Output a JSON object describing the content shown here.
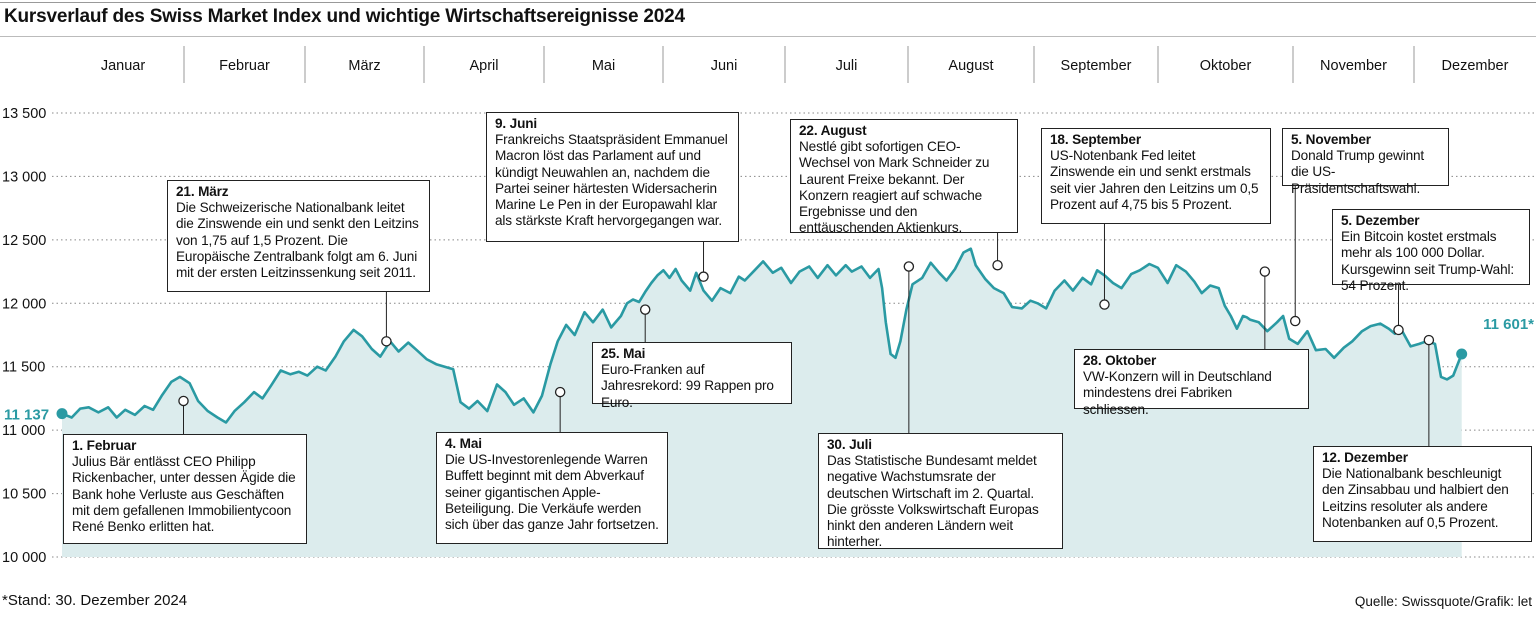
{
  "title": "Kursverlauf des Swiss Market Index und wichtige Wirtschaftsereignisse 2024",
  "footnote": "*Stand: 30. Dezember 2024",
  "source": "Quelle: Swissquote/Grafik: let",
  "colors": {
    "line": "#2a9aa3",
    "area": "#dceced",
    "grid": "#888888"
  },
  "chart_data": {
    "type": "area",
    "title": "Kursverlauf des Swiss Market Index und wichtige Wirtschaftsereignisse 2024",
    "xlabel": "",
    "ylabel": "",
    "months": [
      "Januar",
      "Februar",
      "März",
      "April",
      "Mai",
      "Juni",
      "Juli",
      "August",
      "September",
      "Oktober",
      "November",
      "Dezember"
    ],
    "ylim": [
      10000,
      13500
    ],
    "yticks": [
      10000,
      10500,
      11000,
      11500,
      12000,
      12500,
      13000,
      13500
    ],
    "ytick_labels": [
      "10 000",
      "10 500",
      "11 000",
      "11 500",
      "12 000",
      "12 500",
      "13 000",
      "13 500"
    ],
    "start_label": "11 137",
    "end_label": "11 601*",
    "series": [
      {
        "name": "SMI",
        "points": [
          [
            0.0,
            11130
          ],
          [
            0.08,
            11100
          ],
          [
            0.15,
            11170
          ],
          [
            0.22,
            11180
          ],
          [
            0.3,
            11140
          ],
          [
            0.38,
            11180
          ],
          [
            0.45,
            11100
          ],
          [
            0.52,
            11160
          ],
          [
            0.6,
            11120
          ],
          [
            0.68,
            11190
          ],
          [
            0.75,
            11160
          ],
          [
            0.82,
            11270
          ],
          [
            0.9,
            11380
          ],
          [
            0.97,
            11420
          ],
          [
            1.05,
            11370
          ],
          [
            1.12,
            11230
          ],
          [
            1.2,
            11150
          ],
          [
            1.28,
            11100
          ],
          [
            1.35,
            11060
          ],
          [
            1.42,
            11150
          ],
          [
            1.5,
            11220
          ],
          [
            1.58,
            11300
          ],
          [
            1.65,
            11250
          ],
          [
            1.72,
            11350
          ],
          [
            1.8,
            11470
          ],
          [
            1.88,
            11440
          ],
          [
            1.95,
            11460
          ],
          [
            2.02,
            11430
          ],
          [
            2.1,
            11500
          ],
          [
            2.17,
            11470
          ],
          [
            2.25,
            11580
          ],
          [
            2.32,
            11700
          ],
          [
            2.4,
            11790
          ],
          [
            2.47,
            11740
          ],
          [
            2.55,
            11640
          ],
          [
            2.62,
            11580
          ],
          [
            2.7,
            11700
          ],
          [
            2.77,
            11620
          ],
          [
            2.85,
            11690
          ],
          [
            2.92,
            11630
          ],
          [
            3.0,
            11560
          ],
          [
            3.08,
            11520
          ],
          [
            3.15,
            11500
          ],
          [
            3.22,
            11480
          ],
          [
            3.28,
            11220
          ],
          [
            3.35,
            11170
          ],
          [
            3.42,
            11230
          ],
          [
            3.5,
            11150
          ],
          [
            3.58,
            11360
          ],
          [
            3.65,
            11300
          ],
          [
            3.72,
            11200
          ],
          [
            3.8,
            11250
          ],
          [
            3.88,
            11140
          ],
          [
            3.95,
            11270
          ],
          [
            4.02,
            11520
          ],
          [
            4.08,
            11700
          ],
          [
            4.15,
            11830
          ],
          [
            4.22,
            11750
          ],
          [
            4.3,
            11930
          ],
          [
            4.37,
            11850
          ],
          [
            4.45,
            11950
          ],
          [
            4.52,
            11810
          ],
          [
            4.6,
            11900
          ],
          [
            4.65,
            12000
          ],
          [
            4.7,
            12030
          ],
          [
            4.75,
            12010
          ],
          [
            4.8,
            12090
          ],
          [
            4.85,
            12160
          ],
          [
            4.9,
            12220
          ],
          [
            4.95,
            12260
          ],
          [
            5.0,
            12200
          ],
          [
            5.05,
            12270
          ],
          [
            5.1,
            12180
          ],
          [
            5.17,
            12100
          ],
          [
            5.22,
            12240
          ],
          [
            5.28,
            12100
          ],
          [
            5.35,
            12020
          ],
          [
            5.42,
            12120
          ],
          [
            5.5,
            12080
          ],
          [
            5.57,
            12210
          ],
          [
            5.62,
            12180
          ],
          [
            5.7,
            12260
          ],
          [
            5.77,
            12330
          ],
          [
            5.85,
            12240
          ],
          [
            5.92,
            12280
          ],
          [
            6.0,
            12160
          ],
          [
            6.07,
            12250
          ],
          [
            6.15,
            12290
          ],
          [
            6.22,
            12200
          ],
          [
            6.3,
            12300
          ],
          [
            6.37,
            12220
          ],
          [
            6.45,
            12300
          ],
          [
            6.5,
            12250
          ],
          [
            6.58,
            12290
          ],
          [
            6.65,
            12200
          ],
          [
            6.72,
            12270
          ],
          [
            6.75,
            12120
          ],
          [
            6.78,
            11850
          ],
          [
            6.82,
            11600
          ],
          [
            6.86,
            11570
          ],
          [
            6.9,
            11700
          ],
          [
            6.95,
            11950
          ],
          [
            7.0,
            12150
          ],
          [
            7.08,
            12200
          ],
          [
            7.15,
            12320
          ],
          [
            7.22,
            12240
          ],
          [
            7.28,
            12180
          ],
          [
            7.35,
            12270
          ],
          [
            7.42,
            12400
          ],
          [
            7.48,
            12430
          ],
          [
            7.52,
            12300
          ],
          [
            7.6,
            12190
          ],
          [
            7.67,
            12120
          ],
          [
            7.75,
            12080
          ],
          [
            7.82,
            11970
          ],
          [
            7.9,
            11960
          ],
          [
            7.97,
            12020
          ],
          [
            8.03,
            12000
          ],
          [
            8.1,
            11960
          ],
          [
            8.17,
            12100
          ],
          [
            8.25,
            12180
          ],
          [
            8.32,
            12100
          ],
          [
            8.4,
            12200
          ],
          [
            8.47,
            12150
          ],
          [
            8.52,
            12260
          ],
          [
            8.58,
            12220
          ],
          [
            8.65,
            12160
          ],
          [
            8.72,
            12120
          ],
          [
            8.8,
            12230
          ],
          [
            8.87,
            12260
          ],
          [
            8.95,
            12310
          ],
          [
            9.02,
            12280
          ],
          [
            9.1,
            12160
          ],
          [
            9.17,
            12300
          ],
          [
            9.25,
            12250
          ],
          [
            9.32,
            12170
          ],
          [
            9.38,
            12080
          ],
          [
            9.45,
            12140
          ],
          [
            9.52,
            12120
          ],
          [
            9.57,
            11980
          ],
          [
            9.62,
            11900
          ],
          [
            9.67,
            11800
          ],
          [
            9.72,
            11900
          ],
          [
            9.75,
            11890
          ],
          [
            9.78,
            11870
          ],
          [
            9.85,
            11850
          ],
          [
            9.92,
            11780
          ],
          [
            10.0,
            11850
          ],
          [
            10.05,
            11900
          ],
          [
            10.1,
            11720
          ],
          [
            10.17,
            11680
          ],
          [
            10.25,
            11780
          ],
          [
            10.32,
            11630
          ],
          [
            10.4,
            11640
          ],
          [
            10.47,
            11570
          ],
          [
            10.55,
            11650
          ],
          [
            10.62,
            11700
          ],
          [
            10.7,
            11780
          ],
          [
            10.77,
            11820
          ],
          [
            10.85,
            11840
          ],
          [
            10.92,
            11800
          ],
          [
            10.97,
            11760
          ],
          [
            11.02,
            11800
          ],
          [
            11.1,
            11660
          ],
          [
            11.17,
            11680
          ],
          [
            11.23,
            11700
          ],
          [
            11.3,
            11680
          ],
          [
            11.35,
            11420
          ],
          [
            11.4,
            11400
          ],
          [
            11.45,
            11430
          ],
          [
            11.52,
            11600
          ]
        ]
      }
    ],
    "events": [
      {
        "date": "1. Februar",
        "t": 1.0,
        "value": 11230,
        "text": "Julius Bär entlässt CEO Philipp Rickenbacher, unter dessen Ägide die Bank hohe Verluste aus Geschäften mit dem gefallenen Immobilientycoon René Benko erlitten hat."
      },
      {
        "date": "21. März",
        "t": 2.67,
        "value": 11700,
        "text": "Die Schweizerische Nationalbank leitet die Zinswende ein und senkt den Leitzins von 1,75 auf 1,5 Prozent. Die Europäische Zentralbank folgt am 6. Juni mit der ersten Leitzinssenkung seit 2011."
      },
      {
        "date": "4. Mai",
        "t": 4.1,
        "value": 11300,
        "text": "Die US-Investorenlegende Warren Buffett beginnt mit dem Abverkauf seiner gigantischen Apple-Beteiligung. Die Verkäufe werden sich über das ganze Jahr fortsetzen."
      },
      {
        "date": "25. Mai",
        "t": 4.8,
        "value": 11950,
        "text": "Euro-Franken auf Jahresrekord: 99 Rappen pro Euro."
      },
      {
        "date": "9. Juni",
        "t": 5.28,
        "value": 12210,
        "text": "Frankreichs Staatspräsident Emmanuel Macron löst das Parlament auf und kündigt Neuwahlen an, nachdem die Partei seiner härtesten Widersacherin Marine Le Pen in der Europawahl klar als stärkste Kraft hervorgegangen war."
      },
      {
        "date": "30. Juli",
        "t": 6.97,
        "value": 12290,
        "text": "Das Statistische Bundesamt meldet negative Wachstumsrate der deutschen Wirtschaft im 2. Quartal. Die grösste Volkswirtschaft Europas hinkt den anderen Ländern weit hinterher."
      },
      {
        "date": "22. August",
        "t": 7.7,
        "value": 12300,
        "text": "Nestlé gibt sofortigen CEO-Wechsel von Mark Schneider zu Laurent Freixe bekannt. Der Konzern reagiert auf schwache Ergebnisse und den enttäuschenden Aktienkurs."
      },
      {
        "date": "18. September",
        "t": 8.58,
        "value": 11990,
        "text": "US-Notenbank Fed leitet Zinswende ein und senkt erstmals seit vier Jahren den Leitzins um 0,5 Prozent auf 4,75 bis 5 Prozent."
      },
      {
        "date": "28. Oktober",
        "t": 9.9,
        "value": 12250,
        "text": "VW-Konzern will in Deutschland mindestens drei Fabriken schliessen."
      },
      {
        "date": "5. November",
        "t": 10.15,
        "value": 11860,
        "text": "Donald Trump gewinnt die US-Präsidentschaftswahl."
      },
      {
        "date": "5. Dezember",
        "t": 11.0,
        "value": 11790,
        "text": "Ein Bitcoin kostet erstmals mehr als 100 000 Dollar. Kursgewinn seit Trump-Wahl: 54 Prozent."
      },
      {
        "date": "12. Dezember",
        "t": 11.25,
        "value": 11710,
        "text": "Die Nationalbank beschleunigt den Zinsabbau und halbiert den Leitzins resoluter als andere Notenbanken auf 0,5 Prozent."
      }
    ]
  }
}
